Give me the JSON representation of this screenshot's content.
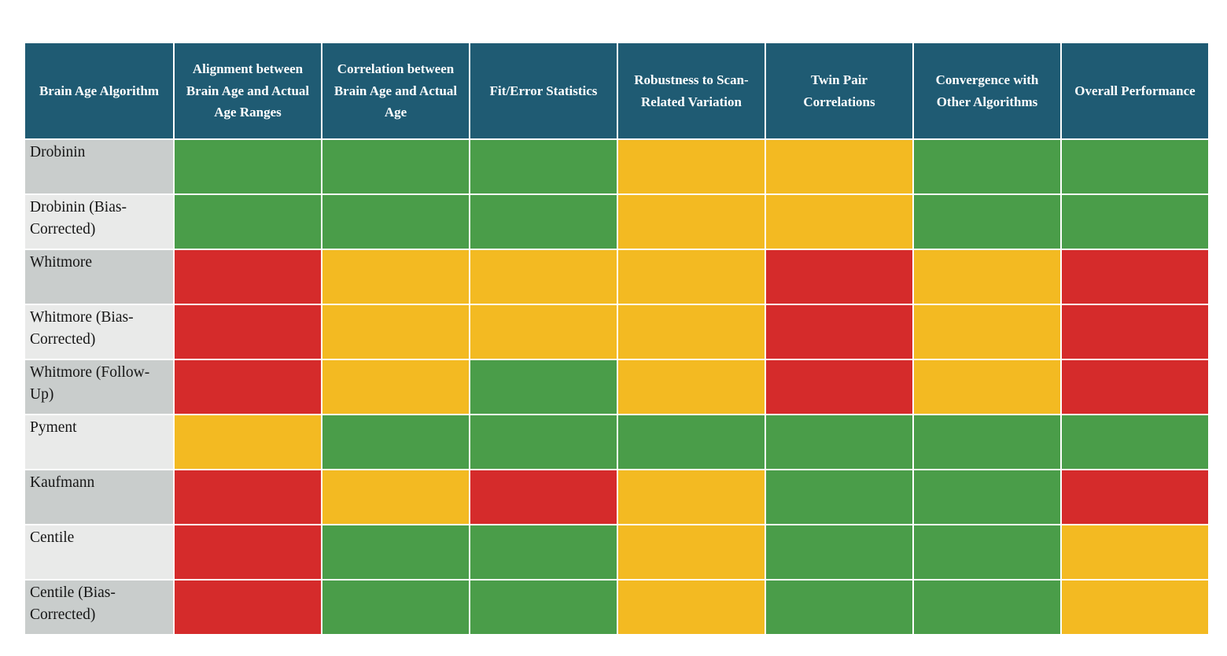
{
  "colors": {
    "header_bg": "#1F5B73",
    "header_text": "#FFFFFF",
    "green": "#4A9D49",
    "yellow": "#F3BA22",
    "red": "#D52B2B",
    "label_bg_dark": "#C9CDCC",
    "label_bg_light": "#E9EAE9",
    "grid_line": "#FFFFFF",
    "label_text": "#161616"
  },
  "chart_data": {
    "type": "heatmap",
    "title": "",
    "legend_position": "none",
    "columns": [
      "Brain Age Algorithm",
      "Alignment between Brain Age and Actual Age Ranges",
      "Correlation between Brain Age and Actual Age",
      "Fit/Error Statistics",
      "Robustness to Scan-Related Variation",
      "Twin Pair Correlations",
      "Convergence with Other Algorithms",
      "Overall Performance"
    ],
    "color_scale": {
      "green": "#4A9D49",
      "yellow": "#F3BA22",
      "red": "#D52B2B"
    },
    "rows": [
      {
        "label": "Drobinin",
        "cells": [
          "green",
          "green",
          "green",
          "yellow",
          "yellow",
          "green",
          "green"
        ]
      },
      {
        "label": "Drobinin (Bias-Corrected)",
        "cells": [
          "green",
          "green",
          "green",
          "yellow",
          "yellow",
          "green",
          "green"
        ]
      },
      {
        "label": "Whitmore",
        "cells": [
          "red",
          "yellow",
          "yellow",
          "yellow",
          "red",
          "yellow",
          "red"
        ]
      },
      {
        "label": "Whitmore (Bias-Corrected)",
        "cells": [
          "red",
          "yellow",
          "yellow",
          "yellow",
          "red",
          "yellow",
          "red"
        ]
      },
      {
        "label": "Whitmore (Follow-Up)",
        "cells": [
          "red",
          "yellow",
          "green",
          "yellow",
          "red",
          "yellow",
          "red"
        ]
      },
      {
        "label": "Pyment",
        "cells": [
          "yellow",
          "green",
          "green",
          "green",
          "green",
          "green",
          "green"
        ]
      },
      {
        "label": "Kaufmann",
        "cells": [
          "red",
          "yellow",
          "red",
          "yellow",
          "green",
          "green",
          "red"
        ]
      },
      {
        "label": "Centile",
        "cells": [
          "red",
          "green",
          "green",
          "yellow",
          "green",
          "green",
          "yellow"
        ]
      },
      {
        "label": "Centile (Bias-Corrected)",
        "cells": [
          "red",
          "green",
          "green",
          "yellow",
          "green",
          "green",
          "yellow"
        ]
      }
    ]
  }
}
